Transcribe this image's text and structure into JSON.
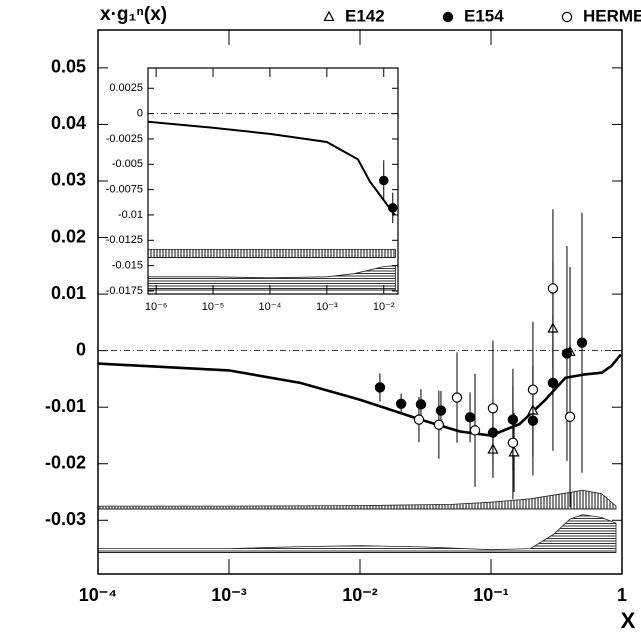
{
  "chart_data": [
    {
      "type": "scatter",
      "ylabel": "x·g₁ⁿ(x)",
      "xlabel": "X",
      "xlog": true,
      "xlim": [
        0.0001,
        1
      ],
      "xticks": [
        {
          "value": 0.0001,
          "label": "10⁻⁴"
        },
        {
          "value": 0.001,
          "label": "10⁻³"
        },
        {
          "value": 0.01,
          "label": "10⁻²"
        },
        {
          "value": 0.1,
          "label": "10⁻¹"
        },
        1
      ],
      "ylim": [
        -0.0395,
        0.0567
      ],
      "yticks": [
        -0.03,
        -0.02,
        -0.01,
        0,
        0.01,
        0.02,
        0.03,
        0.04,
        0.05
      ],
      "zero_line": true,
      "legend": "top-right",
      "series": [
        {
          "name": "E142",
          "marker": "triangle-open",
          "color": "#000000",
          "x": [
            0.1035,
            0.15,
            0.209,
            0.297,
            0.401
          ],
          "values": [
            -0.0175,
            -0.018,
            -0.0106,
            0.0039,
            -0.0002
          ],
          "errors": [
            0.005,
            0.007,
            0.008,
            0.012,
            0.015
          ]
        },
        {
          "name": "E154",
          "marker": "circle-filled",
          "color": "#000000",
          "x": [
            0.0142,
            0.0206,
            0.0292,
            0.0415,
            0.0692,
            0.1035,
            0.147,
            0.209,
            0.297,
            0.38,
            0.495
          ],
          "values": [
            -0.0065,
            -0.0094,
            -0.0095,
            -0.0106,
            -0.0118,
            -0.0145,
            -0.0122,
            -0.0124,
            -0.0057,
            -0.0005,
            0.0014
          ],
          "errors": [
            0.0025,
            0.0018,
            0.0027,
            0.0035,
            0.0044,
            0.006,
            0.009,
            0.0097,
            0.012,
            0.019,
            0.023
          ]
        },
        {
          "name": "HERMES",
          "marker": "circle-open",
          "color": "#000000",
          "x": [
            0.0282,
            0.04,
            0.055,
            0.0755,
            0.1035,
            0.147,
            0.209,
            0.297,
            0.401
          ],
          "values": [
            -0.0122,
            -0.0131,
            -0.0083,
            -0.0141,
            -0.0102,
            -0.0163,
            -0.0069,
            0.011,
            -0.0117
          ],
          "errors": [
            0.004,
            0.006,
            0.008,
            0.01,
            0.012,
            0.01,
            0.012,
            0.014,
            0.016
          ]
        }
      ],
      "curve": {
        "x": [
          0.0001,
          0.001,
          0.0035,
          0.01,
          0.029,
          0.058,
          0.1,
          0.165,
          0.26,
          0.37,
          0.52,
          0.7,
          0.83,
          0.98
        ],
        "values": [
          -0.0023,
          -0.0035,
          -0.0057,
          -0.0087,
          -0.0122,
          -0.0143,
          -0.015,
          -0.013,
          -0.0087,
          -0.0048,
          -0.0042,
          -0.0039,
          -0.0027,
          -0.0007
        ]
      },
      "bands": [
        {
          "hatch": "vertical",
          "base": -0.028,
          "x": [
            0.0001,
            0.001,
            0.01,
            0.05,
            0.1,
            0.2,
            0.35,
            0.5,
            0.7,
            0.9
          ],
          "upper": [
            -0.0275,
            -0.0275,
            -0.0274,
            -0.0272,
            -0.0268,
            -0.0262,
            -0.0253,
            -0.0247,
            -0.0253,
            -0.0275
          ]
        },
        {
          "hatch": "horizontal",
          "base": -0.0357,
          "x": [
            0.0001,
            0.001,
            0.003,
            0.01,
            0.03,
            0.1,
            0.2,
            0.3,
            0.4,
            0.5,
            0.7,
            0.9
          ],
          "upper": [
            -0.035,
            -0.035,
            -0.0347,
            -0.0345,
            -0.0347,
            -0.0352,
            -0.035,
            -0.0325,
            -0.0298,
            -0.029,
            -0.0295,
            -0.0305
          ]
        }
      ]
    },
    {
      "type": "scatter",
      "xlog": true,
      "xlim": [
        7.2e-07,
        0.0178
      ],
      "xticks": [
        {
          "value": 1e-06,
          "label": "10⁻⁶"
        },
        {
          "value": 1e-05,
          "label": "10⁻⁵"
        },
        {
          "value": 0.0001,
          "label": "10⁻⁴"
        },
        {
          "value": 0.001,
          "label": "10⁻³"
        },
        {
          "value": 0.01,
          "label": "10⁻²"
        }
      ],
      "ylim": [
        -0.0178,
        0.0045
      ],
      "yticks": [
        -0.0175,
        -0.015,
        -0.0125,
        -0.01,
        -0.0075,
        -0.005,
        -0.0025,
        0,
        0.0025
      ],
      "zero_line": true,
      "series": [
        {
          "marker": "circle-filled",
          "color": "#000000",
          "x": [
            0.01,
            0.0144
          ],
          "values": [
            -0.0066,
            -0.0093
          ],
          "errors": [
            0.002,
            0.0015
          ]
        }
      ],
      "curve": {
        "x": [
          7.2e-07,
          1e-05,
          0.0001,
          0.001,
          0.0035,
          0.0057,
          0.0156
        ],
        "values": [
          -0.0008,
          -0.0014,
          -0.002,
          -0.0028,
          -0.0045,
          -0.0067,
          -0.01
        ]
      },
      "bands": [
        {
          "hatch": "vertical",
          "base": -0.0142,
          "x": [
            7.2e-07,
            0.0001,
            0.016
          ],
          "upper": [
            -0.0134,
            -0.0134,
            -0.0134
          ]
        },
        {
          "hatch": "horizontal",
          "base": -0.0174,
          "x": [
            7.2e-07,
            1e-05,
            0.0001,
            0.001,
            0.003,
            0.006,
            0.01,
            0.016
          ],
          "upper": [
            -0.0161,
            -0.0161,
            -0.0162,
            -0.0161,
            -0.0158,
            -0.0154,
            -0.0151,
            -0.015
          ]
        }
      ]
    }
  ]
}
